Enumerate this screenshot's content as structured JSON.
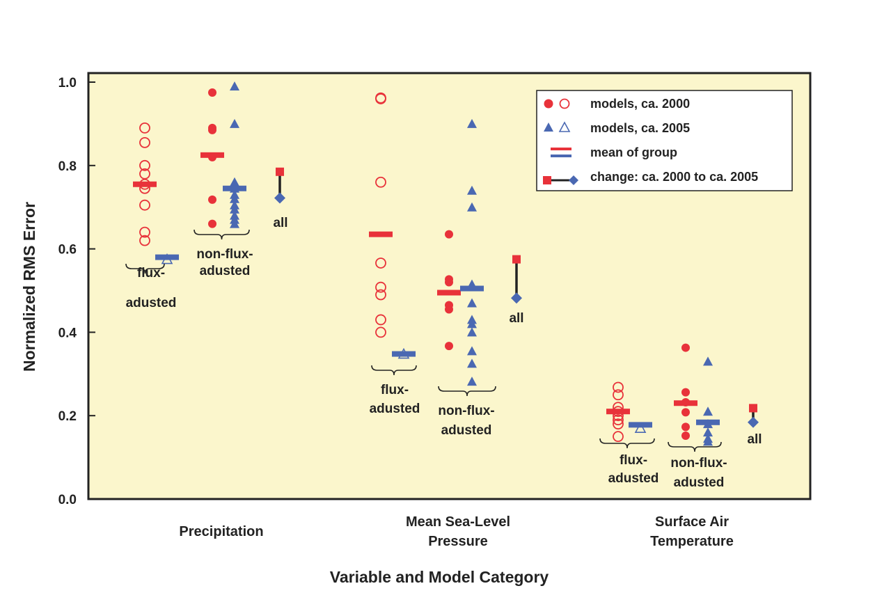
{
  "chart_data": {
    "type": "scatter",
    "title": "",
    "xlabel": "Variable and Model Category",
    "ylabel": "Normalized RMS Error",
    "ylim": [
      0.0,
      1.0
    ],
    "yticks": [
      "0.0",
      "0.2",
      "0.4",
      "0.6",
      "0.8",
      "1.0"
    ],
    "background": "#fbf6cc",
    "colors": {
      "red": "#e8323a",
      "blue": "#4a68b2"
    },
    "categories": [
      {
        "line1": "Precipitation",
        "line2": ""
      },
      {
        "line1": "Mean Sea-Level",
        "line2": "Pressure"
      },
      {
        "line1": "Surface Air",
        "line2": "Temperature"
      }
    ],
    "legend": {
      "position": "top-right",
      "items": [
        "models, ca. 2000",
        "models, ca. 2005",
        "mean of group",
        "change: ca. 2000 to ca. 2005"
      ]
    },
    "group_labels": {
      "flux": {
        "line1": "flux-",
        "line2": "adusted"
      },
      "nonflux": {
        "line1": "non-flux-",
        "line2": "adusted"
      },
      "all": "all"
    },
    "series": [
      {
        "variable": "Precipitation",
        "flux": {
          "ca2000": [
            0.89,
            0.855,
            0.8,
            0.78,
            0.755,
            0.745,
            0.705,
            0.64,
            0.62
          ],
          "ca2005": [
            0.575
          ],
          "mean2000": 0.755,
          "mean2005": 0.58
        },
        "nonflux": {
          "ca2000": [
            0.975,
            0.89,
            0.885,
            0.82,
            0.718,
            0.66
          ],
          "ca2005": [
            0.99,
            0.9,
            0.76,
            0.745,
            0.73,
            0.72,
            0.705,
            0.695,
            0.68,
            0.67,
            0.66
          ],
          "mean2000": 0.825,
          "mean2005": 0.745
        },
        "all": {
          "ca2000": 0.785,
          "ca2005": 0.722
        }
      },
      {
        "variable": "Mean Sea-Level Pressure",
        "flux": {
          "ca2000": [
            0.962,
            0.96,
            0.76,
            0.566,
            0.508,
            0.49,
            0.43,
            0.4
          ],
          "ca2005": [
            0.348
          ],
          "mean2000": 0.635,
          "mean2005": 0.348
        },
        "nonflux": {
          "ca2000": [
            0.635,
            0.527,
            0.52,
            0.465,
            0.455,
            0.367
          ],
          "ca2005": [
            0.9,
            0.74,
            0.7,
            0.515,
            0.47,
            0.43,
            0.42,
            0.4,
            0.355,
            0.325,
            0.282
          ],
          "mean2000": 0.495,
          "mean2005": 0.505
        },
        "all": {
          "ca2000": 0.575,
          "ca2005": 0.482
        }
      },
      {
        "variable": "Surface Air Temperature",
        "flux": {
          "ca2000": [
            0.268,
            0.25,
            0.22,
            0.21,
            0.2,
            0.19,
            0.18,
            0.15
          ],
          "ca2005": [
            0.17
          ],
          "mean2000": 0.21,
          "mean2005": 0.178
        },
        "nonflux": {
          "ca2000": [
            0.363,
            0.256,
            0.232,
            0.208,
            0.173,
            0.152
          ],
          "ca2005": [
            0.33,
            0.21,
            0.18,
            0.16,
            0.145,
            0.138
          ],
          "mean2000": 0.23,
          "mean2005": 0.184
        },
        "all": {
          "ca2000": 0.218,
          "ca2005": 0.184
        }
      }
    ]
  }
}
